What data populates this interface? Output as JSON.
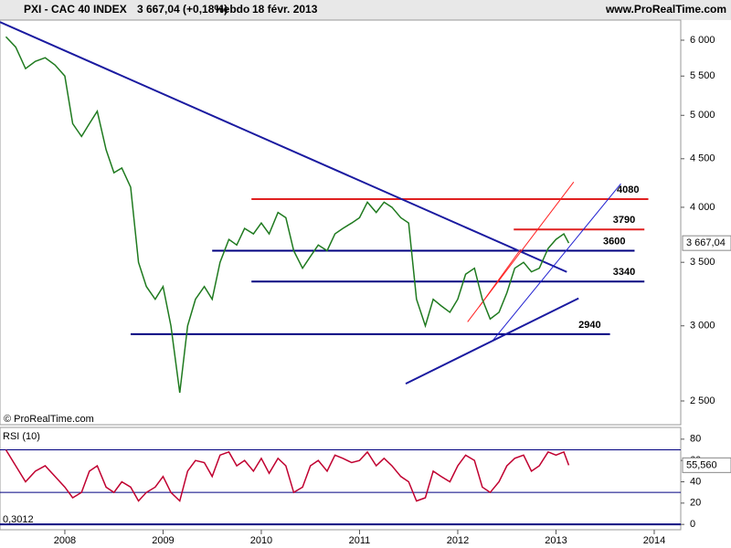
{
  "header": {
    "symbol": "PXI - CAC 40 INDEX",
    "quote": "3 667,04 (+0,18%)",
    "period": "Hebdo",
    "date": "18 févr. 2013",
    "site": "www.ProRealTime.com"
  },
  "chart_data": [
    {
      "type": "line",
      "log_scale": true,
      "copyright": "© ProRealTime.com",
      "x": [
        2007.4,
        2007.5,
        2007.6,
        2007.7,
        2007.8,
        2007.9,
        2008.0,
        2008.08,
        2008.17,
        2008.25,
        2008.33,
        2008.42,
        2008.5,
        2008.58,
        2008.67,
        2008.75,
        2008.83,
        2008.92,
        2009.0,
        2009.08,
        2009.17,
        2009.25,
        2009.33,
        2009.42,
        2009.5,
        2009.58,
        2009.67,
        2009.75,
        2009.83,
        2009.92,
        2010.0,
        2010.08,
        2010.17,
        2010.25,
        2010.33,
        2010.42,
        2010.5,
        2010.58,
        2010.67,
        2010.75,
        2010.83,
        2010.92,
        2011.0,
        2011.08,
        2011.17,
        2011.25,
        2011.33,
        2011.42,
        2011.5,
        2011.58,
        2011.67,
        2011.75,
        2011.83,
        2011.92,
        2012.0,
        2012.08,
        2012.17,
        2012.25,
        2012.33,
        2012.42,
        2012.5,
        2012.58,
        2012.67,
        2012.75,
        2012.83,
        2012.92,
        2013.0,
        2013.08,
        2013.13
      ],
      "series": [
        {
          "color": "#1f7a1f",
          "values": [
            6050,
            5900,
            5600,
            5700,
            5750,
            5650,
            5500,
            4900,
            4750,
            4900,
            5050,
            4600,
            4350,
            4400,
            4200,
            3500,
            3300,
            3200,
            3300,
            3000,
            2550,
            3000,
            3200,
            3300,
            3200,
            3500,
            3700,
            3650,
            3800,
            3750,
            3850,
            3750,
            3950,
            3900,
            3600,
            3450,
            3550,
            3650,
            3600,
            3750,
            3800,
            3850,
            3900,
            4050,
            3950,
            4050,
            4000,
            3900,
            3850,
            3200,
            3000,
            3200,
            3150,
            3100,
            3200,
            3400,
            3450,
            3200,
            3050,
            3100,
            3250,
            3450,
            3500,
            3420,
            3450,
            3620,
            3700,
            3750,
            3667.04
          ],
          "last_label": "3 667,04"
        }
      ],
      "xlim": [
        2007.34,
        2014.27
      ],
      "xticks": [
        2008,
        2009,
        2010,
        2011,
        2012,
        2013,
        2014
      ],
      "ylim": [
        2360,
        6300
      ],
      "yticks": [
        {
          "value": 2500,
          "label": "2 500"
        },
        {
          "value": 3000,
          "label": "3 000"
        },
        {
          "value": 3500,
          "label": "3 500"
        },
        {
          "value": 4000,
          "label": "4 000"
        },
        {
          "value": 4500,
          "label": "4 500"
        },
        {
          "value": 5000,
          "label": "5 000"
        },
        {
          "value": 5500,
          "label": "5 500"
        },
        {
          "value": 6000,
          "label": "6 000"
        }
      ],
      "levels": [
        {
          "value": 4080,
          "color": "#e02020",
          "x": [
            2009.9,
            2013.94
          ]
        },
        {
          "value": 3790,
          "color": "#e02020",
          "x": [
            2012.57,
            2013.9
          ]
        },
        {
          "value": 3600,
          "color": "#000080",
          "x": [
            2009.5,
            2013.8
          ]
        },
        {
          "value": 3340,
          "color": "#000080",
          "x": [
            2009.9,
            2013.9
          ]
        },
        {
          "value": 2940,
          "color": "#000080",
          "x": [
            2008.67,
            2013.55
          ]
        }
      ],
      "trendlines": [
        {
          "color": "#1a1aa0",
          "x": [
            2007.34,
            2013.11
          ],
          "y": [
            6270,
            3419
          ]
        },
        {
          "color": "#ff2020",
          "x": [
            2012.1,
            2013.18
          ],
          "y": [
            3029,
            4253
          ]
        },
        {
          "color": "#ff2020",
          "x": [
            2012.22,
            2012.64
          ],
          "y": [
            3144,
            3612
          ]
        },
        {
          "color": "#2020d0",
          "x": [
            2012.36,
            2013.66
          ],
          "y": [
            2898,
            4235
          ]
        },
        {
          "color": "#1a1aa0",
          "x": [
            2011.47,
            2013.23
          ],
          "y": [
            2607,
            3207
          ]
        }
      ]
    },
    {
      "type": "line",
      "title": "RSI (10)",
      "footer_label": "0,3012",
      "x": [
        2007.4,
        2007.5,
        2007.6,
        2007.7,
        2007.8,
        2007.9,
        2008.0,
        2008.08,
        2008.17,
        2008.25,
        2008.33,
        2008.42,
        2008.5,
        2008.58,
        2008.67,
        2008.75,
        2008.83,
        2008.92,
        2009.0,
        2009.08,
        2009.17,
        2009.25,
        2009.33,
        2009.42,
        2009.5,
        2009.58,
        2009.67,
        2009.75,
        2009.83,
        2009.92,
        2010.0,
        2010.08,
        2010.17,
        2010.25,
        2010.33,
        2010.42,
        2010.5,
        2010.58,
        2010.67,
        2010.75,
        2010.83,
        2010.92,
        2011.0,
        2011.08,
        2011.17,
        2011.25,
        2011.33,
        2011.42,
        2011.5,
        2011.58,
        2011.67,
        2011.75,
        2011.83,
        2011.92,
        2012.0,
        2012.08,
        2012.17,
        2012.25,
        2012.33,
        2012.42,
        2012.5,
        2012.58,
        2012.67,
        2012.75,
        2012.83,
        2012.92,
        2013.0,
        2013.08,
        2013.13
      ],
      "series": [
        {
          "color": "#c00030",
          "values": [
            70,
            55,
            40,
            50,
            55,
            45,
            35,
            25,
            30,
            50,
            55,
            35,
            30,
            40,
            35,
            22,
            30,
            35,
            45,
            30,
            22,
            50,
            60,
            58,
            45,
            65,
            68,
            55,
            60,
            50,
            62,
            48,
            62,
            55,
            30,
            35,
            55,
            60,
            50,
            65,
            62,
            58,
            60,
            68,
            55,
            62,
            55,
            45,
            40,
            22,
            25,
            50,
            45,
            40,
            55,
            65,
            60,
            35,
            30,
            40,
            55,
            62,
            65,
            50,
            55,
            68,
            65,
            68,
            55.56
          ],
          "last_label": "55,560"
        }
      ],
      "xlim": [
        2007.34,
        2014.27
      ],
      "ylim": [
        -5,
        91
      ],
      "yticks": [
        0,
        20,
        40,
        60,
        80
      ],
      "reference_lines": [
        30,
        70
      ]
    }
  ]
}
